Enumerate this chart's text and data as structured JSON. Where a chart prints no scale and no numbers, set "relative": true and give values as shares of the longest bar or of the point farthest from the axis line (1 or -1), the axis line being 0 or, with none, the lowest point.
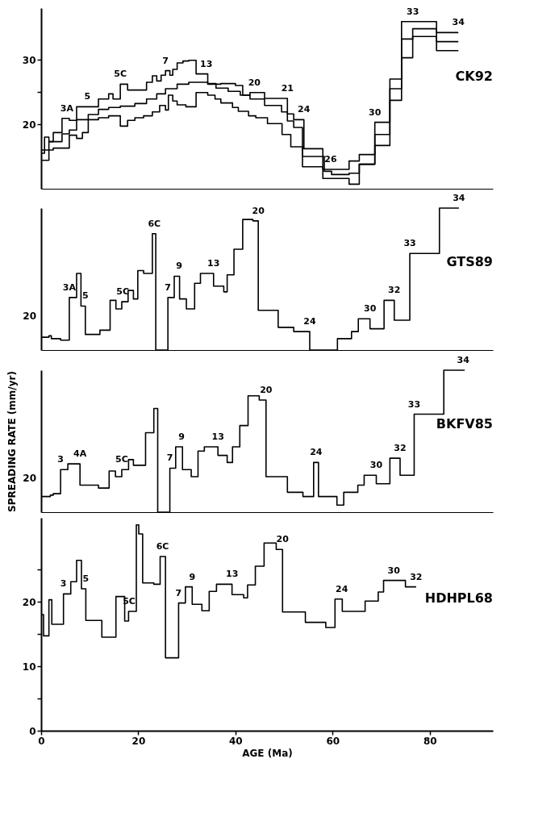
{
  "chart_data": [
    {
      "type": "step",
      "xlim": [
        0,
        93
      ],
      "ylim": [
        10,
        38
      ],
      "yticks": [
        20,
        {
          "value": 25,
          "label": null
        },
        30
      ],
      "tick_labels": "y",
      "series": [
        {
          "color": "#000000",
          "x": [
            0,
            0.7,
            1.6,
            2.5,
            4.3,
            5.8,
            7.3,
            11.8,
            13.9,
            14.8,
            16.3,
            17.8,
            21.7,
            22.9,
            23.8,
            24.7,
            25.6,
            26.5,
            27.1,
            28.0,
            29.2,
            30.4,
            31.9,
            34.3,
            37.0,
            40.0,
            41.5,
            43.0,
            46.0,
            50.7,
            52.0,
            54.1,
            58.0,
            63.4,
            65.5,
            68.7,
            71.8,
            74.2,
            81.4,
            85.9
          ],
          "values": [
            15.5,
            18.0,
            17.3,
            18.7,
            20.9,
            20.6,
            22.7,
            23.9,
            24.7,
            23.9,
            26.2,
            25.3,
            26.5,
            27.5,
            26.7,
            27.6,
            28.3,
            27.6,
            28.5,
            29.5,
            29.8,
            29.9,
            27.8,
            26.2,
            26.3,
            26.0,
            24.5,
            24.9,
            24.0,
            21.6,
            20.7,
            16.2,
            13.0,
            14.3,
            15.3,
            20.3,
            27.0,
            35.9,
            34.2,
            34.2
          ]
        },
        {
          "name": "CK92",
          "color": "#000000",
          "x": [
            0,
            1.6,
            4.3,
            5.8,
            7.3,
            9.7,
            11.8,
            13.9,
            16.3,
            19.3,
            21.7,
            23.8,
            25.6,
            28.0,
            30.4,
            34.3,
            36.0,
            38.5,
            41.0,
            43.0,
            46.0,
            49.5,
            50.7,
            52.0,
            53.8,
            58.3,
            59.8,
            63.4,
            65.5,
            68.7,
            71.8,
            74.2,
            76.5,
            81.4,
            85.9
          ],
          "values": [
            16.0,
            17.3,
            18.5,
            19.1,
            20.7,
            21.5,
            22.3,
            22.6,
            22.8,
            23.2,
            23.9,
            24.7,
            25.5,
            26.2,
            26.5,
            26.3,
            25.6,
            25.1,
            24.5,
            23.9,
            22.9,
            21.9,
            20.5,
            19.5,
            15.0,
            12.7,
            12.2,
            12.4,
            13.8,
            18.4,
            25.5,
            33.2,
            34.8,
            32.8,
            32.8
          ]
        },
        {
          "color": "#000000",
          "x": [
            0,
            1.6,
            2.5,
            5.8,
            7.3,
            8.5,
            9.7,
            11.8,
            13.9,
            16.3,
            17.8,
            19.3,
            21.1,
            22.9,
            24.4,
            25.6,
            26.2,
            27.1,
            28.0,
            29.8,
            31.9,
            34.3,
            35.8,
            37.0,
            39.4,
            40.6,
            42.7,
            44.2,
            46.6,
            49.6,
            51.4,
            53.8,
            58.0,
            63.4,
            65.5,
            68.7,
            71.8,
            74.2,
            76.5,
            81.4,
            85.9
          ],
          "values": [
            14.4,
            16.0,
            16.3,
            18.3,
            17.8,
            18.7,
            20.7,
            21.0,
            21.3,
            19.7,
            20.6,
            21.0,
            21.3,
            21.9,
            22.9,
            22.2,
            24.5,
            23.6,
            23.0,
            22.7,
            24.9,
            24.5,
            23.9,
            23.3,
            22.6,
            22.0,
            21.3,
            21.0,
            20.1,
            18.4,
            16.5,
            13.4,
            11.6,
            10.7,
            13.8,
            16.7,
            23.7,
            30.3,
            33.6,
            31.4,
            31.4
          ]
        }
      ],
      "annotations": [
        {
          "text": "3A",
          "x": 5.3,
          "y": 20.9
        },
        {
          "text": "5",
          "x": 9.5,
          "y": 22.7
        },
        {
          "text": "5C",
          "x": 16.3,
          "y": 26.2
        },
        {
          "text": "7",
          "x": 25.6,
          "y": 28.3
        },
        {
          "text": "13",
          "x": 34.0,
          "y": 27.8
        },
        {
          "text": "20",
          "x": 43.9,
          "y": 24.9
        },
        {
          "text": "21",
          "x": 50.7,
          "y": 24.0
        },
        {
          "text": "24",
          "x": 54.1,
          "y": 20.7
        },
        {
          "text": "26",
          "x": 59.6,
          "y": 13.0
        },
        {
          "text": "30",
          "x": 68.7,
          "y": 20.3
        },
        {
          "text": "33",
          "x": 76.5,
          "y": 35.9
        },
        {
          "text": "34",
          "x": 85.9,
          "y": 34.2
        }
      ]
    },
    {
      "type": "step",
      "xlim": [
        0,
        93
      ],
      "relative": true,
      "tick_labels": false,
      "series": [
        {
          "name": "GTS89",
          "color": "#000000",
          "x": [
            0,
            1.6,
            2.1,
            4.0,
            5.8,
            7.3,
            8.2,
            9.1,
            12.1,
            14.2,
            15.4,
            16.6,
            17.9,
            19.0,
            19.9,
            21.1,
            22.9,
            23.6,
            26.1,
            27.4,
            28.5,
            29.9,
            31.6,
            32.8,
            35.5,
            37.6,
            38.3,
            39.7,
            41.5,
            43.6,
            44.7,
            48.8,
            52.0,
            55.3,
            61.0,
            63.9,
            65.3,
            67.7,
            70.6,
            72.7,
            75.9,
            82.0,
            86.0
          ],
          "values": [
            0.09,
            0.1,
            0.08,
            0.07,
            0.37,
            0.54,
            0.31,
            0.11,
            0.14,
            0.35,
            0.29,
            0.34,
            0.42,
            0.36,
            0.56,
            0.54,
            0.82,
            0,
            0.37,
            0.52,
            0.36,
            0.29,
            0.47,
            0.54,
            0.45,
            0.41,
            0.53,
            0.71,
            0.92,
            0.91,
            0.28,
            0.16,
            0.13,
            0,
            0.08,
            0.13,
            0.22,
            0.15,
            0.35,
            0.21,
            0.68,
            1,
            1
          ]
        }
      ],
      "annotations": [
        "20",
        {
          "text": "3A",
          "x": 5.8,
          "y": 0.37
        },
        {
          "text": "5",
          "x": 9.1,
          "y": 0.31
        },
        {
          "text": "5C",
          "x": 16.8,
          "y": 0.34
        },
        {
          "text": "6C",
          "x": 23.3,
          "y": 0.82
        },
        {
          "text": "7",
          "x": 26.1,
          "y": 0.37
        },
        {
          "text": "9",
          "x": 28.4,
          "y": 0.52
        },
        {
          "text": "13",
          "x": 35.5,
          "y": 0.54
        },
        {
          "text": "20",
          "x": 44.7,
          "y": 0.91
        },
        {
          "text": "24",
          "x": 55.3,
          "y": 0.13
        },
        {
          "text": "30",
          "x": 67.7,
          "y": 0.22
        },
        {
          "text": "32",
          "x": 72.7,
          "y": 0.35
        },
        {
          "text": "33",
          "x": 75.9,
          "y": 0.68
        },
        {
          "text": "34",
          "x": 86.0,
          "y": 1
        }
      ]
    },
    {
      "type": "step",
      "xlim": [
        0,
        93
      ],
      "relative": true,
      "tick_labels": false,
      "ylabel": "SPREADING RATE (mm/yr)",
      "series": [
        {
          "name": "BKFV85",
          "color": "#000000",
          "x": [
            0,
            1.0,
            1.9,
            2.5,
            4.0,
            5.5,
            6.7,
            8.0,
            9.1,
            11.8,
            14.0,
            15.3,
            16.6,
            18.0,
            19.0,
            21.5,
            23.2,
            24.0,
            26.5,
            27.7,
            29.1,
            30.9,
            32.3,
            33.6,
            36.4,
            38.3,
            39.4,
            40.9,
            42.6,
            44.9,
            46.3,
            50.7,
            53.9,
            56.1,
            57.1,
            60.9,
            62.3,
            65.2,
            66.5,
            69.0,
            71.8,
            73.9,
            76.8,
            82.9,
            87.2
          ],
          "values": [
            0.11,
            0.11,
            0.12,
            0.13,
            0.3,
            0.34,
            0.34,
            0.19,
            0.19,
            0.17,
            0.29,
            0.25,
            0.3,
            0.37,
            0.33,
            0.56,
            0.73,
            0,
            0.31,
            0.46,
            0.3,
            0.25,
            0.43,
            0.46,
            0.4,
            0.35,
            0.46,
            0.61,
            0.82,
            0.79,
            0.25,
            0.14,
            0.11,
            0.35,
            0.11,
            0.05,
            0.14,
            0.19,
            0.26,
            0.2,
            0.38,
            0.26,
            0.69,
            1,
            1
          ]
        }
      ],
      "annotations": [
        "20",
        {
          "text": "3",
          "x": 4.0,
          "y": 0.3
        },
        {
          "text": "4A",
          "x": 8.0,
          "y": 0.34
        },
        {
          "text": "5C",
          "x": 16.6,
          "y": 0.3
        },
        {
          "text": "7",
          "x": 26.5,
          "y": 0.31
        },
        {
          "text": "9",
          "x": 28.9,
          "y": 0.46
        },
        {
          "text": "13",
          "x": 36.4,
          "y": 0.46
        },
        {
          "text": "20",
          "x": 46.3,
          "y": 0.79
        },
        {
          "text": "24",
          "x": 56.6,
          "y": 0.35
        },
        {
          "text": "30",
          "x": 69.0,
          "y": 0.26
        },
        {
          "text": "32",
          "x": 73.9,
          "y": 0.38
        },
        {
          "text": "33",
          "x": 76.8,
          "y": 0.69
        },
        {
          "text": "34",
          "x": 86.9,
          "y": 1
        }
      ]
    },
    {
      "type": "step",
      "xlim": [
        0,
        93
      ],
      "xticks": [
        0,
        20,
        40,
        60,
        80
      ],
      "ylim": [
        0,
        33
      ],
      "yticks": [
        0,
        {
          "value": 5,
          "label": null
        },
        10,
        {
          "value": 15,
          "label": null
        },
        20,
        {
          "value": 25,
          "label": null
        }
      ],
      "xlabel": "AGE (Ma)",
      "series": [
        {
          "name": "HDHPL68",
          "color": "#000000",
          "x": [
            0,
            0.5,
            1.6,
            2.2,
            4.6,
            6.1,
            7.3,
            8.3,
            9.2,
            12.5,
            15.4,
            17.2,
            18.0,
            19.6,
            20.1,
            20.9,
            23.2,
            24.5,
            25.6,
            28.3,
            29.7,
            31.1,
            33.1,
            34.6,
            36.1,
            39.3,
            41.7,
            42.5,
            44.1,
            45.9,
            48.4,
            49.7,
            54.4,
            58.6,
            60.5,
            62.0,
            66.7,
            69.4,
            70.5,
            75.0,
            77.2
          ],
          "values": [
            18.0,
            14.7,
            20.3,
            16.5,
            21.2,
            23.1,
            26.4,
            22.0,
            17.1,
            14.5,
            20.8,
            17.0,
            18.5,
            31.9,
            30.5,
            22.9,
            22.7,
            27.0,
            11.3,
            19.8,
            22.3,
            19.6,
            18.6,
            21.6,
            22.7,
            21.1,
            20.6,
            22.6,
            25.5,
            29.1,
            28.1,
            18.4,
            16.8,
            16.0,
            20.4,
            18.5,
            20.1,
            21.5,
            23.3,
            22.3,
            22.3
          ]
        }
      ],
      "annotations": [
        {
          "text": "3",
          "x": 4.6,
          "y": 21.2
        },
        {
          "text": "5",
          "x": 9.2,
          "y": 22.0
        },
        {
          "text": "5C",
          "x": 18.1,
          "y": 18.5
        },
        {
          "text": "6C",
          "x": 25.0,
          "y": 27.0
        },
        {
          "text": "7",
          "x": 28.3,
          "y": 19.8
        },
        {
          "text": "9",
          "x": 31.1,
          "y": 22.3
        },
        {
          "text": "13",
          "x": 39.3,
          "y": 22.7
        },
        {
          "text": "20",
          "x": 49.7,
          "y": 28.1
        },
        {
          "text": "24",
          "x": 61.9,
          "y": 20.4
        },
        {
          "text": "30",
          "x": 72.6,
          "y": 23.3
        },
        {
          "text": "32",
          "x": 77.2,
          "y": 22.3
        }
      ]
    }
  ]
}
